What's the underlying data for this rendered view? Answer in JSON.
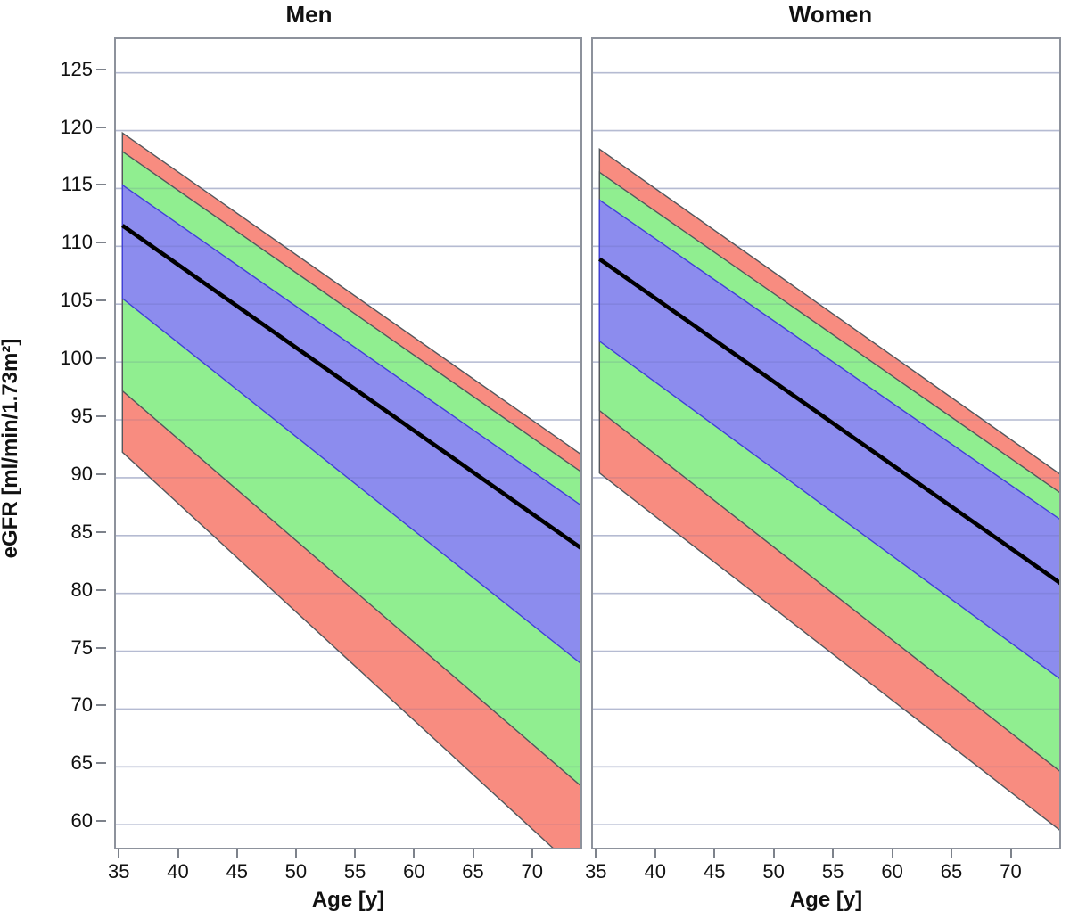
{
  "chart_data": {
    "type": "area",
    "description": "Two-panel fan chart of eGFR reference percentile bands declining linearly with age, for men and women",
    "xlabel": "Age [y]",
    "ylabel": "eGFR [ml/min/1.73m²]",
    "x_ticks": [
      35,
      40,
      45,
      50,
      55,
      60,
      65,
      70
    ],
    "y_ticks": [
      125,
      120,
      115,
      110,
      105,
      100,
      95,
      90,
      85,
      80,
      75,
      70,
      65,
      60
    ],
    "xlim": [
      34.6,
      74.25
    ],
    "ylim": [
      57.55,
      127.75
    ],
    "grid": "horizontal-only",
    "gridline_color": "#c9cede",
    "data_age_range": [
      35,
      74
    ],
    "panels": [
      {
        "title": "Men",
        "median": {
          "x": [
            35,
            74
          ],
          "values": [
            111.8,
            83.8
          ],
          "color": "#000000"
        },
        "bands": [
          {
            "name": "outer-band-red",
            "fill": "#F88C80",
            "stroke": "#53575c",
            "upper": [
              119.8,
              91.9
            ],
            "lower": [
              92.2,
              55.6
            ]
          },
          {
            "name": "middle-band-green",
            "fill": "#90EE90",
            "stroke": "#53575c",
            "upper": [
              118.2,
              90.4
            ],
            "lower": [
              97.5,
              63.2
            ]
          },
          {
            "name": "inner-band-blue",
            "fill": "#8C8CEE",
            "stroke": "#4040d9",
            "upper": [
              115.3,
              87.5
            ],
            "lower": [
              105.5,
              73.8
            ]
          }
        ]
      },
      {
        "title": "Women",
        "median": {
          "x": [
            35,
            74
          ],
          "values": [
            108.9,
            80.8
          ],
          "color": "#000000"
        },
        "bands": [
          {
            "name": "outer-band-red",
            "fill": "#F88C80",
            "stroke": "#53575c",
            "upper": [
              118.4,
              90.2
            ],
            "lower": [
              90.4,
              59.4
            ]
          },
          {
            "name": "middle-band-green",
            "fill": "#90EE90",
            "stroke": "#53575c",
            "upper": [
              116.4,
              88.6
            ],
            "lower": [
              95.8,
              64.5
            ]
          },
          {
            "name": "inner-band-blue",
            "fill": "#8C8CEE",
            "stroke": "#4040d9",
            "upper": [
              114.0,
              86.3
            ],
            "lower": [
              101.8,
              72.5
            ]
          }
        ]
      }
    ]
  }
}
